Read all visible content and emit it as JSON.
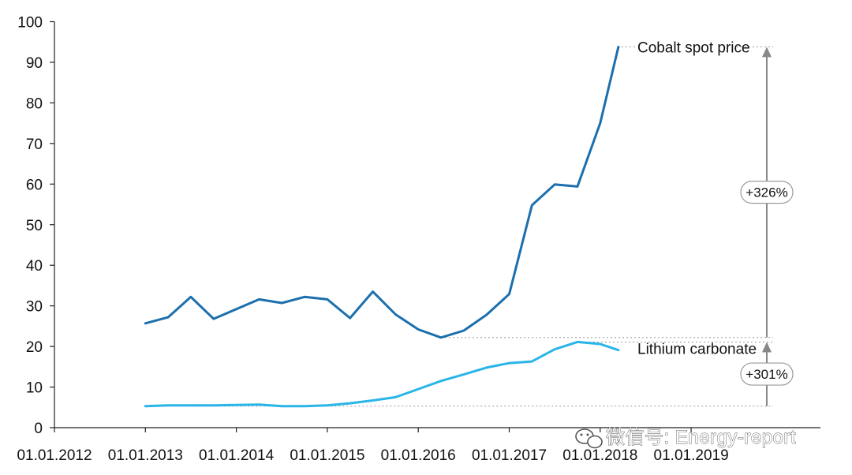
{
  "chart_data": {
    "type": "line",
    "x_labels": [
      "01.01.2012",
      "01.01.2013",
      "01.01.2014",
      "01.01.2015",
      "01.01.2016",
      "01.01.2017",
      "01.01.2018",
      "01.01.2019"
    ],
    "y_ticks": [
      0,
      10,
      20,
      30,
      40,
      50,
      60,
      70,
      80,
      90,
      100
    ],
    "ylim": [
      0,
      100
    ],
    "grid": false,
    "series": [
      {
        "name": "Cobalt spot price",
        "color": "#1b6fae",
        "points": [
          [
            2013.0,
            25.7
          ],
          [
            2013.25,
            27.2
          ],
          [
            2013.5,
            32.2
          ],
          [
            2013.75,
            26.8
          ],
          [
            2014.0,
            29.2
          ],
          [
            2014.25,
            31.6
          ],
          [
            2014.5,
            30.7
          ],
          [
            2014.75,
            32.2
          ],
          [
            2015.0,
            31.6
          ],
          [
            2015.25,
            27.0
          ],
          [
            2015.5,
            33.5
          ],
          [
            2015.75,
            27.9
          ],
          [
            2016.0,
            24.2
          ],
          [
            2016.25,
            22.2
          ],
          [
            2016.5,
            23.9
          ],
          [
            2016.75,
            27.8
          ],
          [
            2017.0,
            32.9
          ],
          [
            2017.25,
            54.8
          ],
          [
            2017.5,
            59.9
          ],
          [
            2017.75,
            59.4
          ],
          [
            2018.0,
            75.0
          ],
          [
            2018.2,
            93.8
          ]
        ]
      },
      {
        "name": "Lithium carbonate",
        "color": "#29b5e8",
        "points": [
          [
            2013.0,
            5.3
          ],
          [
            2013.25,
            5.5
          ],
          [
            2013.5,
            5.5
          ],
          [
            2013.75,
            5.5
          ],
          [
            2014.0,
            5.6
          ],
          [
            2014.25,
            5.7
          ],
          [
            2014.5,
            5.3
          ],
          [
            2014.75,
            5.3
          ],
          [
            2015.0,
            5.5
          ],
          [
            2015.25,
            6.0
          ],
          [
            2015.5,
            6.7
          ],
          [
            2015.75,
            7.5
          ],
          [
            2016.0,
            9.5
          ],
          [
            2016.25,
            11.5
          ],
          [
            2016.5,
            13.1
          ],
          [
            2016.75,
            14.8
          ],
          [
            2017.0,
            15.9
          ],
          [
            2017.25,
            16.3
          ],
          [
            2017.5,
            19.3
          ],
          [
            2017.75,
            21.1
          ],
          [
            2018.0,
            20.6
          ],
          [
            2018.2,
            19.1
          ]
        ]
      }
    ],
    "annotations": [
      {
        "text": "+326%",
        "from": 22.2,
        "to": 93.8
      },
      {
        "text": "+301%",
        "from": 5.3,
        "to": 21.1
      }
    ]
  },
  "watermark": {
    "text": "微信号: Energy-report"
  }
}
